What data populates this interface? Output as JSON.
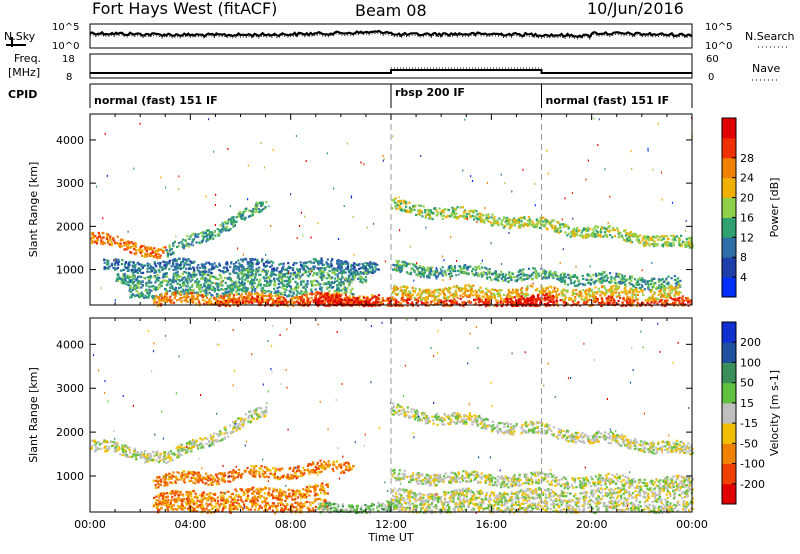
{
  "header": {
    "title": "Fort Hays West (fitACF)",
    "beam": "Beam 08",
    "date": "10/Jun/2016"
  },
  "top_panels": {
    "nsky_label": "N.Sky",
    "nsky_ticks": [
      "10^5",
      "10^0"
    ],
    "nsearch_label": "N.Search",
    "nsearch_ticks": [
      "10^5",
      "10^0"
    ],
    "freq_label": "Freq.",
    "freq_unit": "[MHz]",
    "freq_ticks": [
      "18",
      "8"
    ],
    "nave_label": "Nave",
    "nave_ticks": [
      "60",
      "0"
    ],
    "cpid_label": "CPID",
    "modes": [
      {
        "label": "normal (fast) 151 IF",
        "start_hr": 0,
        "end_hr": 12
      },
      {
        "label": "rbsp 200 IF",
        "start_hr": 12,
        "end_hr": 18
      },
      {
        "label": "normal (fast) 151 IF",
        "start_hr": 18,
        "end_hr": 24
      }
    ]
  },
  "chart_data": [
    {
      "type": "heatmap",
      "name": "power",
      "ylabel": "Slant Range [km]",
      "xlabel": "",
      "ylim": [
        180,
        4600
      ],
      "xlim": [
        0,
        24
      ],
      "yticks": [
        1000,
        2000,
        3000,
        4000
      ],
      "colorbar_label": "Power [dB]",
      "colorbar_ticks": [
        "4",
        "8",
        "12",
        "16",
        "20",
        "24",
        "28"
      ],
      "colors": [
        "#0030ff",
        "#1e3fa8",
        "#2f6fa8",
        "#2fa070",
        "#8fd04a",
        "#f0b000",
        "#f08000",
        "#f03000",
        "#e00000"
      ],
      "bands": [
        {
          "x": [
            0.0,
            3.0
          ],
          "y_start": 1750,
          "y_end": 1400,
          "level": 6
        },
        {
          "x": [
            3.0,
            7.0
          ],
          "y_start": 1400,
          "y_end": 2500,
          "level": 3
        },
        {
          "x": [
            0.5,
            11.5
          ],
          "y_start": 1100,
          "y_end": 1100,
          "level": 2
        },
        {
          "x": [
            1.0,
            11.0
          ],
          "y_start": 780,
          "y_end": 900,
          "level": 3
        },
        {
          "x": [
            1.5,
            10.5
          ],
          "y_start": 520,
          "y_end": 620,
          "level": 3
        },
        {
          "x": [
            2.5,
            11.5
          ],
          "y_start": 330,
          "y_end": 330,
          "level": 6
        },
        {
          "x": [
            5.0,
            24.0
          ],
          "y_start": 220,
          "y_end": 220,
          "level": 7
        },
        {
          "x": [
            12.0,
            24.0
          ],
          "y_start": 2500,
          "y_end": 1600,
          "level": 4
        },
        {
          "x": [
            12.0,
            23.5
          ],
          "y_start": 1050,
          "y_end": 700,
          "level": 3
        },
        {
          "x": [
            12.0,
            23.5
          ],
          "y_start": 480,
          "y_end": 480,
          "level": 5
        },
        {
          "x": [
            9.0,
            11.5
          ],
          "y_start": 300,
          "y_end": 300,
          "level": 8
        },
        {
          "x": [
            16.5,
            18.5
          ],
          "y_start": 280,
          "y_end": 280,
          "level": 8
        }
      ]
    },
    {
      "type": "heatmap",
      "name": "velocity",
      "ylabel": "Slant Range [km]",
      "xlabel": "Time UT",
      "ylim": [
        180,
        4600
      ],
      "xlim": [
        0,
        24
      ],
      "yticks": [
        1000,
        2000,
        3000,
        4000
      ],
      "xticks": [
        "00:00",
        "04:00",
        "08:00",
        "12:00",
        "16:00",
        "20:00",
        "00:00"
      ],
      "colorbar_label": "Velocity [m s-1]",
      "colorbar_ticks": [
        "200",
        "100",
        "50",
        "15",
        "-15",
        "-50",
        "-100",
        "-200"
      ],
      "colors": [
        "#1030d0",
        "#2050a0",
        "#3a8f5a",
        "#60c040",
        "#bfbfbf",
        "#f0c000",
        "#f08000",
        "#f04000",
        "#e00000"
      ],
      "bands": [
        {
          "x": [
            0.0,
            3.0
          ],
          "y_start": 1700,
          "y_end": 1450,
          "level": 4
        },
        {
          "x": [
            3.0,
            7.0
          ],
          "y_start": 1400,
          "y_end": 2500,
          "level": 4
        },
        {
          "x": [
            12.0,
            24.0
          ],
          "y_start": 2500,
          "y_end": 1600,
          "level": 4
        },
        {
          "x": [
            2.5,
            10.5
          ],
          "y_start": 900,
          "y_end": 1250,
          "level": 6
        },
        {
          "x": [
            2.5,
            9.5
          ],
          "y_start": 500,
          "y_end": 680,
          "level": 6
        },
        {
          "x": [
            2.5,
            9.5
          ],
          "y_start": 330,
          "y_end": 330,
          "level": 6
        },
        {
          "x": [
            9.0,
            12.0
          ],
          "y_start": 260,
          "y_end": 300,
          "level": 3
        },
        {
          "x": [
            12.0,
            24.0
          ],
          "y_start": 1000,
          "y_end": 850,
          "level": 4
        },
        {
          "x": [
            12.0,
            24.0
          ],
          "y_start": 550,
          "y_end": 600,
          "level": 4
        },
        {
          "x": [
            12.0,
            24.0
          ],
          "y_start": 300,
          "y_end": 300,
          "level": 4
        }
      ]
    }
  ]
}
